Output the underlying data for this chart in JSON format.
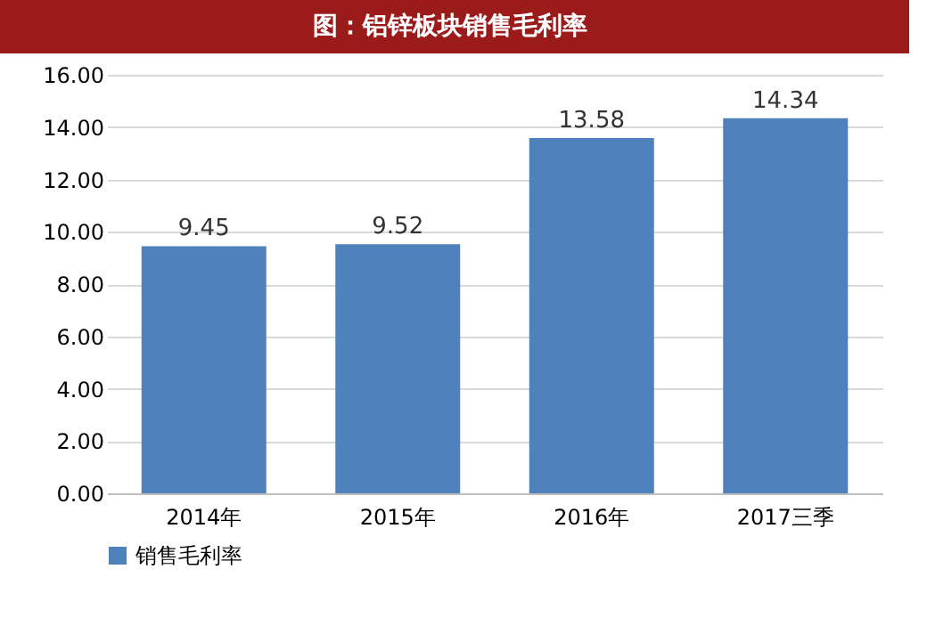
{
  "chart_data": {
    "type": "bar",
    "title": "图：铝锌板块销售毛利率",
    "categories": [
      "2014年",
      "2015年",
      "2016年",
      "2017三季"
    ],
    "series": [
      {
        "name": "销售毛利率",
        "color": "#4f81bd",
        "values": [
          9.45,
          9.52,
          13.58,
          14.34
        ]
      }
    ],
    "ylim": [
      0,
      16
    ],
    "yticks": [
      {
        "value": 0,
        "label": "0.00"
      },
      {
        "value": 2,
        "label": "2.00"
      },
      {
        "value": 4,
        "label": "4.00"
      },
      {
        "value": 6,
        "label": "6.00"
      },
      {
        "value": 8,
        "label": "8.00"
      },
      {
        "value": 10,
        "label": "10.00"
      },
      {
        "value": 12,
        "label": "12.00"
      },
      {
        "value": 14,
        "label": "14.00"
      },
      {
        "value": 16,
        "label": "16.00"
      }
    ],
    "grid": "y",
    "legend": "bottom",
    "data_labels": true
  }
}
